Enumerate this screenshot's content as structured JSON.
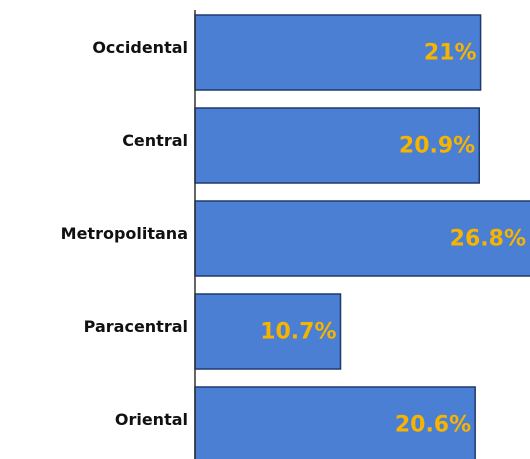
{
  "chart_data": {
    "type": "bar",
    "orientation": "horizontal",
    "categories": [
      "Occidental",
      "Central",
      "Metropolitana",
      "Paracentral",
      "Oriental"
    ],
    "values": [
      21,
      20.9,
      26.8,
      10.7,
      20.6
    ],
    "value_labels": [
      "21%",
      "20.9%",
      "26.8%",
      "10.7%",
      "20.6%"
    ],
    "color": "#4a7fd4"
  }
}
